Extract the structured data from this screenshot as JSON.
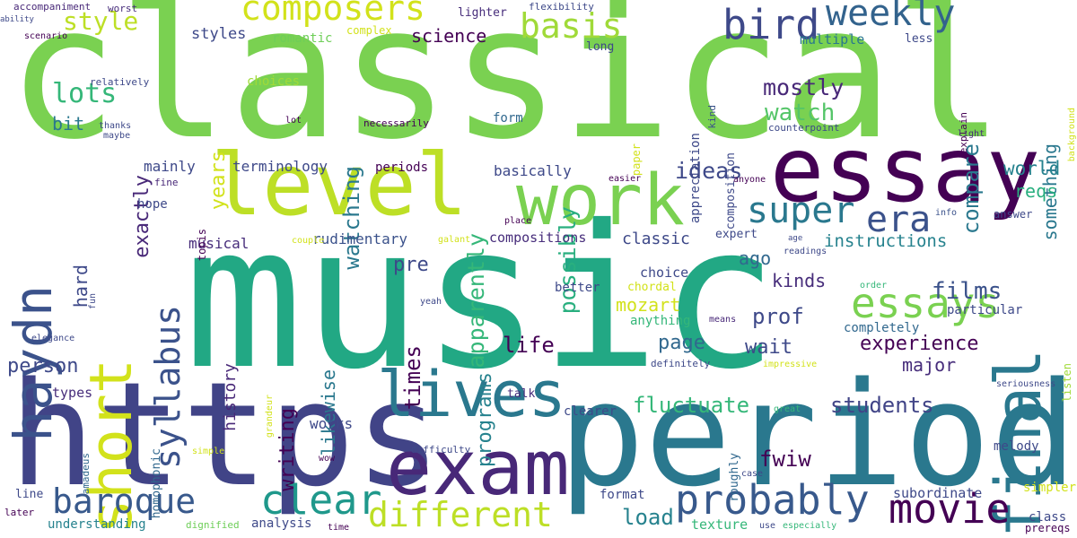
{
  "words": [
    {
      "t": "classical",
      "c": "#7ad151"
    },
    {
      "t": "music",
      "c": "#22a884"
    },
    {
      "t": "https",
      "c": "#414487"
    },
    {
      "t": "period",
      "c": "#2a788e"
    },
    {
      "t": "essay",
      "c": "#440154"
    },
    {
      "t": "level",
      "c": "#bddf26"
    },
    {
      "t": "exam",
      "c": "#482878"
    },
    {
      "t": "work",
      "c": "#7ad151"
    },
    {
      "t": "final",
      "c": "#2a788e"
    },
    {
      "t": "short",
      "c": "#d2e21b"
    },
    {
      "t": "haydn",
      "c": "#3b528b"
    },
    {
      "t": "lives",
      "c": "#2a788e"
    },
    {
      "t": "movie",
      "c": "#440154"
    },
    {
      "t": "probably",
      "c": "#38598c"
    },
    {
      "t": "different",
      "c": "#bddf26"
    },
    {
      "t": "baroque",
      "c": "#38598c"
    },
    {
      "t": "clear",
      "c": "#1f988b"
    },
    {
      "t": "essays",
      "c": "#7ad151"
    },
    {
      "t": "super",
      "c": "#2a788e"
    },
    {
      "t": "era",
      "c": "#3b528b"
    },
    {
      "t": "syllabus",
      "c": "#3b528b"
    },
    {
      "t": "bird",
      "c": "#3e4989"
    },
    {
      "t": "weekly",
      "c": "#33638d"
    },
    {
      "t": "composers",
      "c": "#d2e21b"
    },
    {
      "t": "basis",
      "c": "#a0da39"
    },
    {
      "t": "lots",
      "c": "#35b779"
    },
    {
      "t": "exactly",
      "c": "#482878"
    },
    {
      "t": "style",
      "c": "#bddf26"
    },
    {
      "t": "styles",
      "c": "#3e4989"
    },
    {
      "t": "romantic",
      "c": "#6ece58"
    },
    {
      "t": "science",
      "c": "#440154"
    },
    {
      "t": "years",
      "c": "#d2e21b"
    },
    {
      "t": "mostly",
      "c": "#482878"
    },
    {
      "t": "watch",
      "c": "#54c568"
    },
    {
      "t": "compare",
      "c": "#2a788e"
    },
    {
      "t": "something",
      "c": "#2a788e"
    },
    {
      "t": "apparently",
      "c": "#35b779"
    },
    {
      "t": "possibly",
      "c": "#29af7f"
    },
    {
      "t": "watching",
      "c": "#2a788e"
    },
    {
      "t": "ideas",
      "c": "#3e4989"
    },
    {
      "t": "world",
      "c": "#26828e"
    },
    {
      "t": "reqs",
      "c": "#29af7f"
    },
    {
      "t": "instructions",
      "c": "#26828e"
    },
    {
      "t": "person",
      "c": "#3e4989"
    },
    {
      "t": "bit",
      "c": "#2a788e"
    },
    {
      "t": "hard",
      "c": "#3e4989"
    },
    {
      "t": "pre",
      "c": "#3e4989"
    },
    {
      "t": "times",
      "c": "#440154"
    },
    {
      "t": "programs",
      "c": "#26828e"
    },
    {
      "t": "likewise",
      "c": "#2a788e"
    },
    {
      "t": "history",
      "c": "#482878"
    },
    {
      "t": "writing",
      "c": "#440154"
    },
    {
      "t": "films",
      "c": "#3b528b"
    },
    {
      "t": "kinds",
      "c": "#472d7b"
    },
    {
      "t": "prof",
      "c": "#3e4989"
    },
    {
      "t": "mozart",
      "c": "#d2e21b"
    },
    {
      "t": "life",
      "c": "#440154"
    },
    {
      "t": "page",
      "c": "#31688e"
    },
    {
      "t": "wait",
      "c": "#3e4989"
    },
    {
      "t": "experience",
      "c": "#440154"
    },
    {
      "t": "major",
      "c": "#472d7b"
    },
    {
      "t": "fluctuate",
      "c": "#35b779"
    },
    {
      "t": "students",
      "c": "#414487"
    },
    {
      "t": "fwiw",
      "c": "#440154"
    },
    {
      "t": "load",
      "c": "#26828e"
    },
    {
      "t": "works",
      "c": "#3e4989"
    },
    {
      "t": "types",
      "c": "#472d7b"
    },
    {
      "t": "ago",
      "c": "#31688e"
    },
    {
      "t": "classic",
      "c": "#3e4989"
    },
    {
      "t": "compositions",
      "c": "#472d7b"
    },
    {
      "t": "rudimentary",
      "c": "#3b528b"
    },
    {
      "t": "terminology",
      "c": "#3e4989"
    },
    {
      "t": "periods",
      "c": "#440154"
    },
    {
      "t": "basically",
      "c": "#3e4989"
    },
    {
      "t": "mainly",
      "c": "#3e4989"
    },
    {
      "t": "musical",
      "c": "#472d7b"
    },
    {
      "t": "topis",
      "c": "#440154"
    },
    {
      "t": "hope",
      "c": "#3e4989"
    },
    {
      "t": "fine",
      "c": "#482878"
    },
    {
      "t": "choices",
      "c": "#a0da39"
    },
    {
      "t": "complex",
      "c": "#d2e21b"
    },
    {
      "t": "multiple",
      "c": "#2a788e"
    },
    {
      "t": "less",
      "c": "#3e4989"
    },
    {
      "t": "lighter",
      "c": "#472d7b"
    },
    {
      "t": "flexibility",
      "c": "#3e4989"
    },
    {
      "t": "appreciation",
      "c": "#3e4989"
    },
    {
      "t": "kind",
      "c": "#3b528b"
    },
    {
      "t": "composition",
      "c": "#3e4989"
    },
    {
      "t": "long",
      "c": "#3e4989"
    },
    {
      "t": "paper",
      "c": "#d2e21b"
    },
    {
      "t": "form",
      "c": "#31688e"
    },
    {
      "t": "necessarily",
      "c": "#440154"
    },
    {
      "t": "lot",
      "c": "#440154"
    },
    {
      "t": "thanks",
      "c": "#3e4989"
    },
    {
      "t": "maybe",
      "c": "#3e4989"
    },
    {
      "t": "relatively",
      "c": "#3e4989"
    },
    {
      "t": "scenario",
      "c": "#440154"
    },
    {
      "t": "accompaniment",
      "c": "#482878"
    },
    {
      "t": "ability",
      "c": "#3e4989"
    },
    {
      "t": "worst",
      "c": "#472d7b"
    },
    {
      "t": "counterpoint",
      "c": "#3e4989"
    },
    {
      "t": "explain",
      "c": "#440154"
    },
    {
      "t": "light",
      "c": "#472d7b"
    },
    {
      "t": "background",
      "c": "#d2e21b"
    },
    {
      "t": "easier",
      "c": "#440154"
    },
    {
      "t": "anyone",
      "c": "#440154"
    },
    {
      "t": "info",
      "c": "#3b528b"
    },
    {
      "t": "answer",
      "c": "#3e4989"
    },
    {
      "t": "expert",
      "c": "#3e4989"
    },
    {
      "t": "age",
      "c": "#3e4989"
    },
    {
      "t": "readings",
      "c": "#3e4989"
    },
    {
      "t": "place",
      "c": "#440154"
    },
    {
      "t": "galant",
      "c": "#d2e21b"
    },
    {
      "t": "couple",
      "c": "#d2e21b"
    },
    {
      "t": "choice",
      "c": "#3e4989"
    },
    {
      "t": "chordal",
      "c": "#d2e21b"
    },
    {
      "t": "better",
      "c": "#3e4989"
    },
    {
      "t": "anything",
      "c": "#35b779"
    },
    {
      "t": "particular",
      "c": "#3e4989"
    },
    {
      "t": "order",
      "c": "#35b779"
    },
    {
      "t": "completely",
      "c": "#31688e"
    },
    {
      "t": "means",
      "c": "#482878"
    },
    {
      "t": "yeah",
      "c": "#3e4989"
    },
    {
      "t": "fun",
      "c": "#3e4989"
    },
    {
      "t": "elegance",
      "c": "#3e4989"
    },
    {
      "t": "definitely",
      "c": "#3e4989"
    },
    {
      "t": "impressive",
      "c": "#d2e21b"
    },
    {
      "t": "listen",
      "c": "#a0da39"
    },
    {
      "t": "seriousness",
      "c": "#3e4989"
    },
    {
      "t": "talk",
      "c": "#472d7b"
    },
    {
      "t": "clearer",
      "c": "#3e4989"
    },
    {
      "t": "great",
      "c": "#35b779"
    },
    {
      "t": "grandeur",
      "c": "#d2e21b"
    },
    {
      "t": "homophonic",
      "c": "#31688e"
    },
    {
      "t": "difficulty",
      "c": "#3e4989"
    },
    {
      "t": "roughly",
      "c": "#31688e"
    },
    {
      "t": "simple",
      "c": "#d2e21b"
    },
    {
      "t": "wow",
      "c": "#440154"
    },
    {
      "t": "melody",
      "c": "#3e4989"
    },
    {
      "t": "simpler",
      "c": "#d2e21b"
    },
    {
      "t": "subordinate",
      "c": "#3e4989"
    },
    {
      "t": "case",
      "c": "#3e4989"
    },
    {
      "t": "amadeus",
      "c": "#31688e"
    },
    {
      "t": "line",
      "c": "#3e4989"
    },
    {
      "t": "later",
      "c": "#440154"
    },
    {
      "t": "understanding",
      "c": "#26828e"
    },
    {
      "t": "dignified",
      "c": "#6ece58"
    },
    {
      "t": "analysis",
      "c": "#3e4989"
    },
    {
      "t": "time",
      "c": "#440154"
    },
    {
      "t": "format",
      "c": "#3e4989"
    },
    {
      "t": "texture",
      "c": "#35b779"
    },
    {
      "t": "use",
      "c": "#3e4989"
    },
    {
      "t": "especially",
      "c": "#35b779"
    },
    {
      "t": "prereqs",
      "c": "#440154"
    },
    {
      "t": "class",
      "c": "#3e4989"
    }
  ]
}
